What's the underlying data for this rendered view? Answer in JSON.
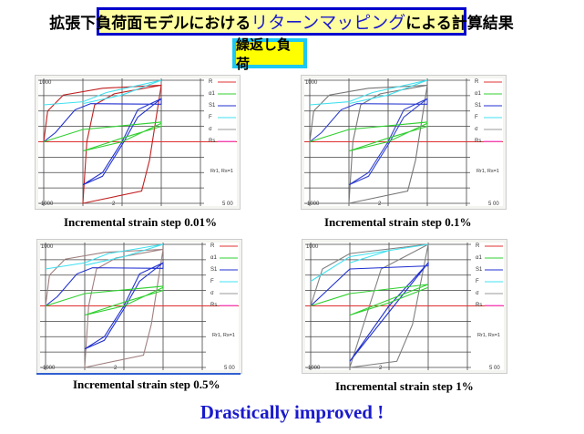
{
  "title": {
    "pre": "拡張下負荷面モデルにおける",
    "highlight": "リターンマッピング",
    "post": "による計算結果"
  },
  "subtitle": "繰返し負荷",
  "footer": "Drastically improved !",
  "colors": {
    "R": "#e03030",
    "alpha1": "#30d030",
    "S1": "#2030d0",
    "F": "#40e0f0",
    "sigma": "#999999",
    "Rs": "#ff60ff"
  },
  "chart_data": [
    {
      "type": "line",
      "caption": "Incremental strain step 0.01%",
      "ytop": "1000",
      "ybottom": "-1000",
      "xmid": "2",
      "xright": "5 00",
      "note": "Rr1, Rs=1",
      "ylim": [
        -1000,
        1000
      ],
      "xlim": [
        0,
        4
      ],
      "legend": [
        "R",
        "α1",
        "S1",
        "F",
        "σ",
        "Rs"
      ],
      "series": [
        {
          "name": "R",
          "color": "#c02020",
          "points": [
            [
              0,
              0
            ],
            [
              0.1,
              500
            ],
            [
              0.5,
              760
            ],
            [
              1.5,
              870
            ],
            [
              3,
              920
            ],
            [
              3,
              920
            ],
            [
              2.7,
              -300
            ],
            [
              2.5,
              -800
            ],
            [
              1,
              -1000
            ],
            [
              1.1,
              0
            ],
            [
              1.3,
              600
            ],
            [
              1.8,
              780
            ],
            [
              3,
              920
            ]
          ]
        },
        {
          "name": "S1",
          "color": "#2030d0",
          "points": [
            [
              0,
              0
            ],
            [
              0.3,
              150
            ],
            [
              0.8,
              520
            ],
            [
              1.2,
              620
            ],
            [
              3,
              610
            ],
            [
              3,
              700
            ],
            [
              2.4,
              400
            ],
            [
              2,
              -50
            ],
            [
              1.5,
              -560
            ],
            [
              1,
              -700
            ],
            [
              1.5,
              -500
            ],
            [
              2,
              0
            ],
            [
              2.4,
              520
            ],
            [
              3,
              700
            ]
          ]
        },
        {
          "name": "F",
          "color": "#40e0f0",
          "points": [
            [
              0,
              600
            ],
            [
              1,
              650
            ],
            [
              1.6,
              800
            ],
            [
              3,
              1000
            ],
            [
              2,
              760
            ],
            [
              1,
              620
            ]
          ]
        },
        {
          "name": "α1",
          "color": "#30d030",
          "points": [
            [
              0,
              0
            ],
            [
              1,
              200
            ],
            [
              3,
              320
            ],
            [
              3,
              250
            ],
            [
              2,
              60
            ],
            [
              1,
              -150
            ],
            [
              2,
              0
            ],
            [
              3,
              300
            ]
          ]
        }
      ]
    },
    {
      "type": "line",
      "caption": "Incremental strain step 0.1%",
      "ytop": "1000",
      "ybottom": "-1000",
      "xmid": "2",
      "xright": "5 00",
      "note": "Rr1, Rs=1",
      "ylim": [
        -1000,
        1000
      ],
      "xlim": [
        0,
        4
      ],
      "legend": [
        "R",
        "α1",
        "S1",
        "F",
        "σ",
        "Rs"
      ],
      "series": [
        {
          "name": "σ",
          "color": "#777777",
          "points": [
            [
              0,
              0
            ],
            [
              0.1,
              500
            ],
            [
              0.5,
              760
            ],
            [
              1.5,
              870
            ],
            [
              3,
              920
            ],
            [
              3,
              920
            ],
            [
              2.7,
              -300
            ],
            [
              2.5,
              -800
            ],
            [
              1,
              -1000
            ],
            [
              1.1,
              0
            ],
            [
              1.3,
              600
            ],
            [
              1.8,
              780
            ],
            [
              3,
              920
            ]
          ]
        },
        {
          "name": "S1",
          "color": "#3040d0",
          "points": [
            [
              0,
              0
            ],
            [
              0.3,
              150
            ],
            [
              0.8,
              520
            ],
            [
              1.2,
              620
            ],
            [
              3,
              610
            ],
            [
              3,
              700
            ],
            [
              2.4,
              400
            ],
            [
              2,
              -50
            ],
            [
              1.5,
              -560
            ],
            [
              1,
              -700
            ],
            [
              1.5,
              -500
            ],
            [
              2,
              0
            ],
            [
              2.4,
              520
            ],
            [
              3,
              700
            ]
          ]
        },
        {
          "name": "F",
          "color": "#40e0f0",
          "points": [
            [
              0,
              600
            ],
            [
              1,
              650
            ],
            [
              1.6,
              800
            ],
            [
              3,
              1000
            ],
            [
              2,
              760
            ],
            [
              1,
              620
            ]
          ]
        },
        {
          "name": "α1",
          "color": "#30d030",
          "points": [
            [
              0,
              0
            ],
            [
              1,
              200
            ],
            [
              3,
              320
            ],
            [
              3,
              250
            ],
            [
              2,
              60
            ],
            [
              1,
              -150
            ],
            [
              2,
              0
            ],
            [
              3,
              300
            ]
          ]
        }
      ]
    },
    {
      "type": "line",
      "caption": "Incremental strain step 0.5%",
      "ytop": "1000",
      "ybottom": "-1000",
      "xmid": "2",
      "xright": "5 00",
      "note": "Rr1, Rs=1",
      "ylim": [
        -1000,
        1000
      ],
      "xlim": [
        0,
        4
      ],
      "legend": [
        "R",
        "α1",
        "S1",
        "F",
        "σ",
        "Rs"
      ],
      "series": [
        {
          "name": "σ",
          "color": "#a08080",
          "points": [
            [
              0,
              0
            ],
            [
              0.1,
              500
            ],
            [
              0.5,
              760
            ],
            [
              1.5,
              870
            ],
            [
              3,
              920
            ],
            [
              3,
              920
            ],
            [
              2.7,
              -300
            ],
            [
              2.5,
              -800
            ],
            [
              1,
              -1000
            ],
            [
              1.1,
              0
            ],
            [
              1.3,
              600
            ],
            [
              1.8,
              780
            ],
            [
              3,
              920
            ]
          ]
        },
        {
          "name": "S1",
          "color": "#2030d0",
          "points": [
            [
              0,
              0
            ],
            [
              0.3,
              150
            ],
            [
              0.8,
              520
            ],
            [
              1.2,
              620
            ],
            [
              3,
              610
            ],
            [
              3,
              700
            ],
            [
              2.4,
              400
            ],
            [
              2,
              -50
            ],
            [
              1.5,
              -560
            ],
            [
              1,
              -700
            ],
            [
              1.5,
              -500
            ],
            [
              2,
              0
            ],
            [
              2.4,
              520
            ],
            [
              3,
              700
            ]
          ]
        },
        {
          "name": "F",
          "color": "#40e0f0",
          "points": [
            [
              0,
              600
            ],
            [
              1,
              700
            ],
            [
              1.6,
              850
            ],
            [
              3,
              1000
            ],
            [
              2,
              800
            ],
            [
              1,
              660
            ]
          ]
        },
        {
          "name": "α1",
          "color": "#30d030",
          "points": [
            [
              0,
              0
            ],
            [
              1,
              200
            ],
            [
              3,
              320
            ],
            [
              3,
              250
            ],
            [
              2,
              60
            ],
            [
              1,
              -150
            ],
            [
              2,
              0
            ],
            [
              3,
              300
            ]
          ]
        }
      ]
    },
    {
      "type": "line",
      "caption": "Incremental strain step 1%",
      "ytop": "1000",
      "ybottom": "-1000",
      "xmid": "2",
      "xright": "5 00",
      "note": "Rr1, Rs=1",
      "ylim": [
        -1000,
        1000
      ],
      "xlim": [
        0,
        4
      ],
      "legend": [
        "R",
        "α1",
        "S1",
        "F",
        "σ",
        "Rs"
      ],
      "series": [
        {
          "name": "σ",
          "color": "#808080",
          "points": [
            [
              0,
              0
            ],
            [
              0.3,
              600
            ],
            [
              1,
              850
            ],
            [
              3,
              1000
            ],
            [
              2.6,
              -300
            ],
            [
              2.2,
              -900
            ],
            [
              1,
              -1000
            ],
            [
              1.4,
              -200
            ],
            [
              1.8,
              600
            ],
            [
              3,
              1000
            ]
          ]
        },
        {
          "name": "S1",
          "color": "#2030d0",
          "points": [
            [
              0,
              0
            ],
            [
              0.5,
              300
            ],
            [
              1,
              600
            ],
            [
              3,
              650
            ],
            [
              3,
              700
            ],
            [
              2,
              0
            ],
            [
              1,
              -900
            ],
            [
              2,
              -100
            ],
            [
              3,
              700
            ]
          ]
        },
        {
          "name": "F",
          "color": "#40e0f0",
          "points": [
            [
              0,
              400
            ],
            [
              1,
              800
            ],
            [
              3,
              1000
            ],
            [
              2,
              900
            ],
            [
              1,
              700
            ]
          ]
        },
        {
          "name": "α1",
          "color": "#30d030",
          "points": [
            [
              0,
              0
            ],
            [
              1,
              200
            ],
            [
              3,
              350
            ],
            [
              2,
              100
            ],
            [
              1,
              -150
            ],
            [
              2,
              50
            ],
            [
              3,
              300
            ]
          ]
        }
      ]
    }
  ]
}
